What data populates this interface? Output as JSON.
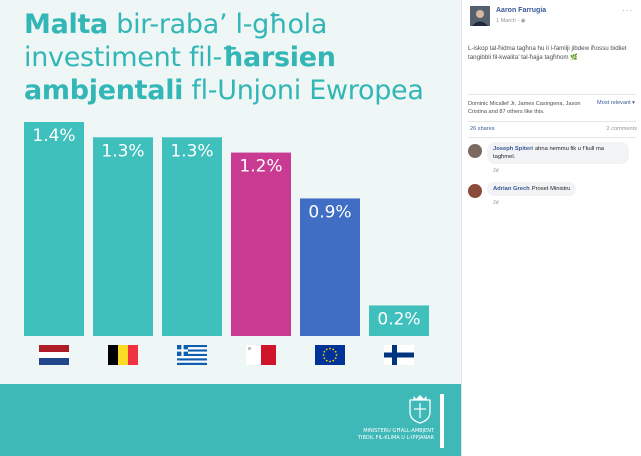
{
  "headline": {
    "line1_bold": "Malta",
    "line1_rest": " bir-raba’ l-għola",
    "line2_rest": "investiment fil-",
    "line2_bold": "ħarsien",
    "line3_bold": "ambjentali",
    "line3_rest": " fl-Unjoni Ewropea"
  },
  "chart_data": {
    "type": "bar",
    "categories": [
      "Netherlands",
      "Belgium",
      "Greece",
      "Malta",
      "European Union",
      "Finland"
    ],
    "values": [
      1.4,
      1.3,
      1.3,
      1.2,
      0.9,
      0.2
    ],
    "labels": [
      "1.4%",
      "1.3%",
      "1.3%",
      "1.2%",
      "0.9%",
      "0.2%"
    ],
    "bar_colors": [
      "#3fc0bd",
      "#3fc0bd",
      "#3fc0bd",
      "#c93b92",
      "#3f6ec4",
      "#3fc0bd"
    ],
    "flag_icons": [
      "netherlands-flag-icon",
      "belgium-flag-icon",
      "greece-flag-icon",
      "malta-flag-icon",
      "eu-flag-icon",
      "finland-flag-icon"
    ],
    "ylim": [
      0,
      1.4
    ],
    "grid": false
  },
  "logo": {
    "line1": "MINISTERU GĦALL-AMBJENT",
    "line2": "TIBDIL FIL-KLIMA U L-IPPJANAR"
  },
  "post": {
    "author": "Aaron Farrugia",
    "date": "1 March ·",
    "menu": "···",
    "text": "L-iskop tal-ħidma tagħna hu li l-familji jibdew iħossu bidliet tangibbli fil-kwalita’ tal-ħajja tagħhom 🌿",
    "likes": "Dominic Micallef Jr, James Casingena, Jason Cristina and 87 others like this.",
    "sort": "Most relevant ▾",
    "shares": "26 shares",
    "comments_count": "2 comments"
  },
  "comments": [
    {
      "name": "Joseph Spiteri",
      "text": "ahna nemmu fik u f’kull ma",
      "text2": "tagħmel.",
      "time": "2d",
      "avatar_color": "#7a6a60"
    },
    {
      "name": "Adrian Grech",
      "text": "Proset Ministru",
      "text2": "",
      "time": "2d",
      "avatar_color": "#8a4b3a"
    }
  ],
  "colors": {
    "accent_teal": "#3fc0bd",
    "malta_magenta": "#c93b92",
    "eu_blue": "#3f6ec4",
    "fb_link": "#385898"
  }
}
